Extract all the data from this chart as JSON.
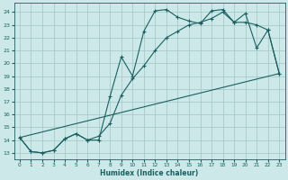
{
  "title": "",
  "xlabel": "Humidex (Indice chaleur)",
  "ylabel": "",
  "bg_color": "#cce8e8",
  "grid_color": "#aacaca",
  "line_color": "#1a6060",
  "xlim": [
    -0.5,
    23.5
  ],
  "ylim": [
    12.5,
    24.7
  ],
  "yticks": [
    13,
    14,
    15,
    16,
    17,
    18,
    19,
    20,
    21,
    22,
    23,
    24
  ],
  "xticks": [
    0,
    1,
    2,
    3,
    4,
    5,
    6,
    7,
    8,
    9,
    10,
    11,
    12,
    13,
    14,
    15,
    16,
    17,
    18,
    19,
    20,
    21,
    22,
    23
  ],
  "line1_x": [
    0,
    1,
    2,
    3,
    4,
    5,
    6,
    7,
    8,
    9,
    10,
    11,
    12,
    13,
    14,
    15,
    16,
    17,
    18,
    19,
    20,
    21,
    22,
    23
  ],
  "line1_y": [
    14.2,
    13.1,
    13.0,
    13.2,
    14.1,
    14.5,
    14.0,
    14.0,
    17.4,
    20.5,
    19.0,
    22.5,
    24.1,
    24.2,
    23.6,
    23.3,
    23.1,
    24.1,
    24.2,
    23.2,
    23.9,
    21.2,
    22.6,
    19.2
  ],
  "line2_x": [
    0,
    1,
    2,
    3,
    4,
    5,
    6,
    7,
    8,
    9,
    10,
    11,
    12,
    13,
    14,
    15,
    16,
    17,
    18,
    19,
    20,
    21,
    22,
    23
  ],
  "line2_y": [
    14.2,
    13.1,
    13.0,
    13.2,
    14.1,
    14.5,
    14.0,
    14.3,
    15.3,
    17.5,
    18.8,
    19.8,
    21.0,
    22.0,
    22.5,
    23.0,
    23.2,
    23.5,
    24.0,
    23.2,
    23.2,
    23.0,
    22.6,
    19.2
  ],
  "line3_x": [
    0,
    23
  ],
  "line3_y": [
    14.2,
    19.2
  ]
}
